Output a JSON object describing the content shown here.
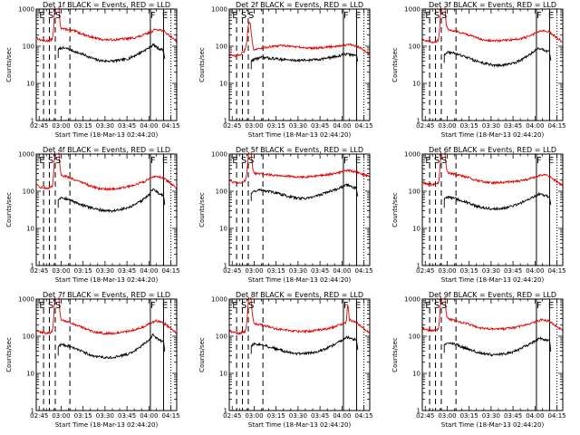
{
  "colors": {
    "events": "#000000",
    "lld": "#e00000",
    "axes": "#000000",
    "background": "#ffffff"
  },
  "x_tick_labels": [
    "02:45",
    "03:00",
    "03:15",
    "03:30",
    "03:45",
    "04:00",
    "04:15"
  ],
  "y_tick_labels": [
    "1",
    "10",
    "100",
    "1000"
  ],
  "chart_data": [
    {
      "type": "line",
      "title": "Det 1f BLACK = Events, RED = LLD",
      "xlabel": "Start Time (18-Mar-13 02:44:20)",
      "ylabel": "Counts/sec",
      "yscale": "log",
      "ylim": [
        1,
        1000
      ],
      "xlim_minutes": [
        -2,
        94
      ],
      "x_unit": "minutes after 02:45",
      "series_names": [
        "Events",
        "LLD"
      ],
      "marker_letters": [
        "E",
        "S",
        "S",
        "F",
        "E"
      ],
      "events_peak": 30,
      "lld_peak": 2500,
      "dashed_markers_min": [
        3,
        7,
        11,
        21
      ],
      "solid_markers_min": [
        76,
        85
      ],
      "dotted_markers_min": [
        90
      ],
      "events_x": [
        13,
        15,
        20,
        25,
        30,
        35,
        40,
        45,
        50,
        55,
        60,
        65,
        70,
        75,
        78,
        80,
        82,
        85,
        86
      ],
      "events_y": [
        80,
        90,
        85,
        70,
        60,
        50,
        42,
        40,
        40,
        42,
        45,
        55,
        70,
        90,
        110,
        95,
        85,
        80,
        40
      ],
      "lld_x": [
        -2,
        0,
        5,
        9,
        11,
        12,
        13,
        15,
        20,
        25,
        30,
        35,
        40,
        45,
        50,
        55,
        60,
        65,
        70,
        75,
        80,
        85,
        90,
        94
      ],
      "lld_y": [
        180,
        150,
        140,
        150,
        160,
        200,
        400,
        300,
        280,
        250,
        210,
        180,
        160,
        150,
        150,
        155,
        160,
        170,
        190,
        230,
        290,
        260,
        180,
        140
      ]
    },
    {
      "type": "line",
      "title": "Det 2f BLACK = Events, RED = LLD",
      "xlabel": "Start Time (18-Mar-13 02:44:20)",
      "ylabel": "Counts/sec",
      "yscale": "log",
      "ylim": [
        1,
        1000
      ],
      "xlim_minutes": [
        -2,
        94
      ],
      "x_unit": "minutes after 02:45",
      "series_names": [
        "Events",
        "LLD"
      ],
      "marker_letters": [
        "E",
        "S",
        "S",
        "F",
        "E"
      ],
      "events_peak": 0,
      "lld_peak": 280,
      "dashed_markers_min": [
        3,
        7,
        11,
        21
      ],
      "solid_markers_min": [
        76,
        85
      ],
      "dotted_markers_min": [
        90
      ],
      "events_x": [
        13,
        15,
        20,
        25,
        30,
        35,
        40,
        45,
        50,
        55,
        60,
        65,
        70,
        75,
        78,
        80,
        82,
        85,
        86
      ],
      "events_y": [
        40,
        45,
        50,
        48,
        46,
        44,
        42,
        42,
        42,
        43,
        45,
        48,
        52,
        58,
        62,
        60,
        58,
        57,
        35
      ],
      "lld_x": [
        -2,
        0,
        5,
        8,
        10,
        11,
        12,
        13,
        15,
        20,
        25,
        30,
        35,
        40,
        45,
        50,
        55,
        60,
        65,
        70,
        75,
        80,
        85,
        90,
        94
      ],
      "lld_y": [
        60,
        55,
        58,
        70,
        110,
        200,
        140,
        90,
        80,
        90,
        95,
        100,
        105,
        100,
        95,
        90,
        90,
        92,
        95,
        100,
        105,
        110,
        100,
        80,
        60
      ]
    },
    {
      "type": "line",
      "title": "Det 3f BLACK = Events, RED = LLD",
      "xlabel": "Start Time (18-Mar-13 02:44:20)",
      "ylabel": "Counts/sec",
      "yscale": "log",
      "ylim": [
        1,
        1000
      ],
      "xlim_minutes": [
        -2,
        94
      ],
      "x_unit": "minutes after 02:45",
      "series_names": [
        "Events",
        "LLD"
      ],
      "marker_letters": [
        "E",
        "S",
        "S",
        "F",
        "E"
      ],
      "events_peak": 0,
      "lld_peak": 2500,
      "dashed_markers_min": [
        3,
        7,
        11,
        21
      ],
      "solid_markers_min": [
        76,
        85
      ],
      "dotted_markers_min": [
        90
      ],
      "events_x": [
        13,
        15,
        20,
        25,
        30,
        35,
        40,
        45,
        50,
        55,
        60,
        65,
        70,
        75,
        78,
        80,
        82,
        85,
        86
      ],
      "events_y": [
        60,
        70,
        65,
        55,
        48,
        40,
        35,
        32,
        30,
        32,
        35,
        42,
        55,
        75,
        90,
        80,
        75,
        70,
        35
      ],
      "lld_x": [
        -2,
        0,
        5,
        9,
        11,
        12,
        13,
        15,
        20,
        25,
        30,
        35,
        40,
        45,
        50,
        55,
        60,
        65,
        70,
        75,
        80,
        85,
        90,
        94
      ],
      "lld_y": [
        160,
        140,
        130,
        140,
        150,
        190,
        380,
        290,
        260,
        230,
        200,
        170,
        150,
        140,
        140,
        145,
        150,
        160,
        180,
        220,
        270,
        240,
        170,
        130
      ]
    },
    {
      "type": "line",
      "title": "Det 4f BLACK = Events, RED = LLD",
      "xlabel": "Start Time (18-Mar-13 02:44:20)",
      "ylabel": "Counts/sec",
      "yscale": "log",
      "ylim": [
        1,
        1000
      ],
      "xlim_minutes": [
        -2,
        94
      ],
      "x_unit": "minutes after 02:45",
      "series_names": [
        "Events",
        "LLD"
      ],
      "marker_letters": [
        "E",
        "S",
        "S",
        "F",
        "E"
      ],
      "events_peak": 0,
      "lld_peak": 2500,
      "dashed_markers_min": [
        3,
        7,
        11,
        21
      ],
      "solid_markers_min": [
        76,
        85
      ],
      "dotted_markers_min": [
        90
      ],
      "events_x": [
        13,
        15,
        20,
        25,
        30,
        35,
        40,
        45,
        50,
        55,
        60,
        65,
        70,
        75,
        78,
        80,
        82,
        85,
        86
      ],
      "events_y": [
        60,
        70,
        60,
        50,
        42,
        36,
        32,
        30,
        30,
        32,
        35,
        42,
        55,
        80,
        120,
        100,
        85,
        75,
        35
      ],
      "lld_x": [
        -2,
        0,
        5,
        9,
        11,
        12,
        13,
        15,
        20,
        25,
        30,
        35,
        40,
        45,
        50,
        55,
        60,
        65,
        70,
        75,
        80,
        85,
        90,
        94
      ],
      "lld_y": [
        150,
        130,
        120,
        130,
        140,
        180,
        360,
        270,
        240,
        200,
        170,
        140,
        120,
        115,
        115,
        120,
        130,
        150,
        170,
        210,
        260,
        230,
        160,
        120
      ]
    },
    {
      "type": "line",
      "title": "Det 5f BLACK = Events, RED = LLD",
      "xlabel": "Start Time (18-Mar-13 02:44:20)",
      "ylabel": "Counts/sec",
      "yscale": "log",
      "ylim": [
        1,
        1000
      ],
      "xlim_minutes": [
        -2,
        94
      ],
      "x_unit": "minutes after 02:45",
      "series_names": [
        "Events",
        "LLD"
      ],
      "marker_letters": [
        "E",
        "S",
        "S",
        "F",
        "E"
      ],
      "events_peak": 0,
      "lld_peak": 1200,
      "dashed_markers_min": [
        3,
        7,
        11,
        21
      ],
      "solid_markers_min": [
        76,
        85
      ],
      "dotted_markers_min": [
        90
      ],
      "events_x": [
        13,
        15,
        20,
        25,
        30,
        35,
        40,
        45,
        50,
        55,
        60,
        65,
        70,
        75,
        78,
        80,
        82,
        85,
        86
      ],
      "events_y": [
        90,
        100,
        110,
        100,
        90,
        80,
        70,
        65,
        65,
        70,
        80,
        95,
        110,
        130,
        150,
        140,
        130,
        120,
        60
      ],
      "lld_x": [
        -2,
        0,
        5,
        9,
        11,
        12,
        13,
        15,
        20,
        25,
        30,
        35,
        40,
        45,
        50,
        55,
        60,
        65,
        70,
        75,
        80,
        85,
        90,
        94
      ],
      "lld_y": [
        200,
        180,
        170,
        190,
        230,
        400,
        320,
        300,
        290,
        280,
        270,
        260,
        250,
        240,
        240,
        250,
        260,
        280,
        300,
        330,
        360,
        330,
        280,
        240
      ]
    },
    {
      "type": "line",
      "title": "Det 6f BLACK = Events, RED = LLD",
      "xlabel": "Start Time (18-Mar-13 02:44:20)",
      "ylabel": "Counts/sec",
      "yscale": "log",
      "ylim": [
        1,
        1000
      ],
      "xlim_minutes": [
        -2,
        94
      ],
      "x_unit": "minutes after 02:45",
      "series_names": [
        "Events",
        "LLD"
      ],
      "marker_letters": [
        "E",
        "S",
        "S",
        "F",
        "E"
      ],
      "events_peak": 0,
      "lld_peak": 2500,
      "dashed_markers_min": [
        3,
        7,
        11,
        21
      ],
      "solid_markers_min": [
        76,
        85
      ],
      "dotted_markers_min": [
        90
      ],
      "events_x": [
        13,
        15,
        20,
        25,
        30,
        35,
        40,
        45,
        50,
        55,
        60,
        65,
        70,
        75,
        78,
        80,
        82,
        85,
        86
      ],
      "events_y": [
        60,
        70,
        65,
        55,
        48,
        40,
        36,
        34,
        34,
        36,
        40,
        48,
        60,
        75,
        85,
        80,
        75,
        70,
        35
      ],
      "lld_x": [
        -2,
        0,
        5,
        9,
        11,
        12,
        13,
        15,
        20,
        25,
        30,
        35,
        40,
        45,
        50,
        55,
        60,
        65,
        70,
        75,
        80,
        85,
        90,
        94
      ],
      "lld_y": [
        180,
        160,
        150,
        160,
        170,
        210,
        420,
        320,
        290,
        260,
        230,
        200,
        180,
        170,
        170,
        175,
        180,
        190,
        210,
        240,
        280,
        250,
        180,
        140
      ]
    },
    {
      "type": "line",
      "title": "Det 7f BLACK = Events, RED = LLD",
      "xlabel": "Start Time (18-Mar-13 02:44:20)",
      "ylabel": "Counts/sec",
      "yscale": "log",
      "ylim": [
        1,
        1000
      ],
      "xlim_minutes": [
        -2,
        94
      ],
      "x_unit": "minutes after 02:45",
      "series_names": [
        "Events",
        "LLD"
      ],
      "marker_letters": [
        "E",
        "S",
        "S",
        "F",
        "E"
      ],
      "events_peak": 0,
      "lld_peak": 2500,
      "dashed_markers_min": [
        3,
        7,
        11,
        21
      ],
      "solid_markers_min": [
        76,
        85
      ],
      "dotted_markers_min": [
        90
      ],
      "events_x": [
        13,
        15,
        20,
        25,
        30,
        35,
        40,
        45,
        50,
        55,
        60,
        65,
        70,
        75,
        78,
        80,
        82,
        85,
        86
      ],
      "events_y": [
        50,
        60,
        55,
        45,
        38,
        32,
        28,
        27,
        27,
        29,
        32,
        40,
        55,
        80,
        110,
        90,
        80,
        70,
        30
      ],
      "lld_x": [
        -2,
        0,
        5,
        9,
        11,
        12,
        13,
        15,
        20,
        25,
        30,
        35,
        40,
        45,
        50,
        55,
        60,
        65,
        70,
        75,
        80,
        85,
        90,
        94
      ],
      "lld_y": [
        150,
        130,
        120,
        130,
        140,
        180,
        360,
        270,
        240,
        200,
        170,
        140,
        125,
        120,
        120,
        125,
        135,
        150,
        170,
        210,
        260,
        230,
        160,
        120
      ]
    },
    {
      "type": "line",
      "title": "Det 8f BLACK = Events, RED = LLD",
      "xlabel": "Start Time (18-Mar-13 02:44:20)",
      "ylabel": "Counts/sec",
      "yscale": "log",
      "ylim": [
        1,
        1000
      ],
      "xlim_minutes": [
        -2,
        94
      ],
      "x_unit": "minutes after 02:45",
      "series_names": [
        "Events",
        "LLD"
      ],
      "marker_letters": [
        "E",
        "S",
        "S",
        "F",
        "E"
      ],
      "events_peak": 0,
      "lld_peak": 1100,
      "dashed_markers_min": [
        3,
        7,
        11,
        21
      ],
      "solid_markers_min": [
        76,
        85
      ],
      "dotted_markers_min": [
        90
      ],
      "events_x": [
        13,
        15,
        20,
        25,
        30,
        35,
        40,
        45,
        50,
        55,
        60,
        65,
        70,
        75,
        78,
        80,
        82,
        85,
        86
      ],
      "events_y": [
        55,
        62,
        60,
        52,
        46,
        40,
        36,
        34,
        34,
        36,
        40,
        48,
        60,
        80,
        95,
        90,
        85,
        80,
        40
      ],
      "lld_x": [
        -2,
        0,
        5,
        9,
        11,
        12,
        13,
        15,
        20,
        25,
        30,
        35,
        40,
        45,
        50,
        55,
        60,
        65,
        70,
        75,
        78,
        79,
        80,
        85,
        90,
        94
      ],
      "lld_y": [
        150,
        130,
        120,
        130,
        160,
        300,
        250,
        220,
        200,
        180,
        160,
        150,
        140,
        135,
        135,
        140,
        150,
        160,
        180,
        210,
        240,
        800,
        280,
        230,
        160,
        120
      ]
    },
    {
      "type": "line",
      "title": "Det 9f BLACK = Events, RED = LLD",
      "xlabel": "Start Time (18-Mar-13 02:44:20)",
      "ylabel": "Counts/sec",
      "yscale": "log",
      "ylim": [
        1,
        1000
      ],
      "xlim_minutes": [
        -2,
        94
      ],
      "x_unit": "minutes after 02:45",
      "series_names": [
        "Events",
        "LLD"
      ],
      "marker_letters": [
        "E",
        "S",
        "S",
        "F",
        "E"
      ],
      "events_peak": 0,
      "lld_peak": 2500,
      "dashed_markers_min": [
        3,
        7,
        11,
        21
      ],
      "solid_markers_min": [
        76,
        85
      ],
      "dotted_markers_min": [
        90
      ],
      "events_x": [
        13,
        15,
        20,
        25,
        30,
        35,
        40,
        45,
        50,
        55,
        60,
        65,
        70,
        75,
        78,
        80,
        82,
        85,
        86
      ],
      "events_y": [
        60,
        68,
        62,
        52,
        44,
        38,
        34,
        32,
        32,
        34,
        38,
        46,
        58,
        75,
        90,
        85,
        80,
        75,
        35
      ],
      "lld_x": [
        -2,
        0,
        5,
        9,
        11,
        12,
        13,
        15,
        20,
        25,
        30,
        35,
        40,
        45,
        50,
        55,
        60,
        65,
        70,
        75,
        80,
        85,
        90,
        94
      ],
      "lld_y": [
        170,
        150,
        140,
        150,
        160,
        200,
        400,
        300,
        270,
        240,
        210,
        180,
        160,
        155,
        155,
        160,
        170,
        185,
        205,
        240,
        280,
        250,
        180,
        140
      ]
    }
  ]
}
